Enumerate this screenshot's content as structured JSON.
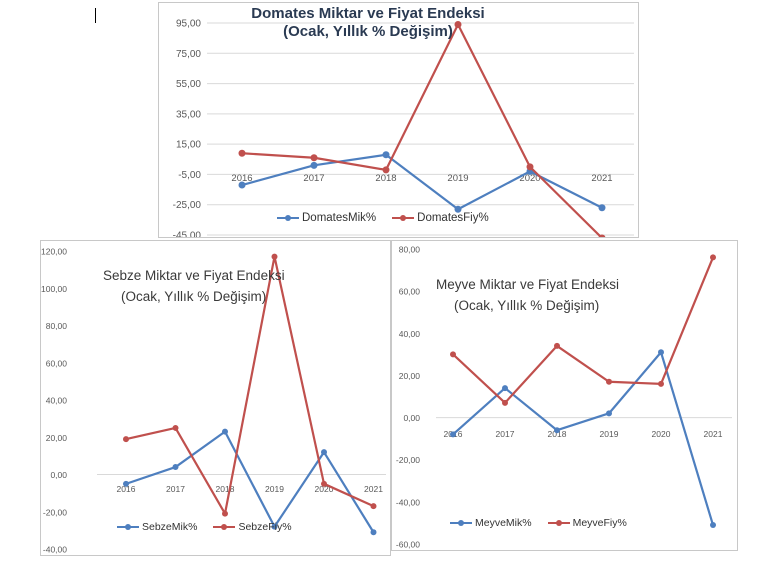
{
  "colors": {
    "series_blue": "#4e7fbf",
    "series_red": "#c0504d",
    "grid": "#d9d9d9",
    "tick_text": "#595959"
  },
  "chart_data": [
    {
      "type": "line",
      "title_line1": "Domates Miktar ve Fiyat Endeksi",
      "title_line2": "(Ocak, Yıllık % Değişim)",
      "categories": [
        "2016",
        "2017",
        "2018",
        "2019",
        "2020",
        "2021"
      ],
      "y_ticks": [
        "95,00",
        "75,00",
        "55,00",
        "35,00",
        "15,00",
        "-5,00",
        "-25,00",
        "-45,00"
      ],
      "ylim": [
        -45,
        95
      ],
      "grid": true,
      "legend": "bottom",
      "series": [
        {
          "name": "DomatesMik%",
          "color": "#4e7fbf",
          "values": [
            -12,
            1,
            8,
            -28,
            -3,
            -27
          ]
        },
        {
          "name": "DomatesFiy%",
          "color": "#c0504d",
          "values": [
            9,
            6,
            -2,
            94,
            0,
            -47
          ]
        }
      ]
    },
    {
      "type": "line",
      "title_line1": "Sebze Miktar ve Fiyat Endeksi",
      "title_line2": "(Ocak, Yıllık % Değişim)",
      "categories": [
        "2016",
        "2017",
        "2018",
        "2019",
        "2020",
        "2021"
      ],
      "y_ticks": [
        "120,00",
        "100,00",
        "80,00",
        "60,00",
        "40,00",
        "20,00",
        "0,00",
        "-20,00",
        "-40,00"
      ],
      "ylim": [
        -40,
        120
      ],
      "grid": false,
      "legend": "bottom",
      "series": [
        {
          "name": "SebzeMik%",
          "color": "#4e7fbf",
          "values": [
            -5,
            4,
            23,
            -28,
            12,
            -31
          ]
        },
        {
          "name": "SebzeFiy%",
          "color": "#c0504d",
          "values": [
            19,
            25,
            -21,
            117,
            -5,
            -17
          ]
        }
      ]
    },
    {
      "type": "line",
      "title_line1": "Meyve Miktar ve Fiyat Endeksi",
      "title_line2": "(Ocak, Yıllık % Değişim)",
      "categories": [
        "2016",
        "2017",
        "2018",
        "2019",
        "2020",
        "2021"
      ],
      "y_ticks": [
        "80,00",
        "60,00",
        "40,00",
        "20,00",
        "0,00",
        "-20,00",
        "-40,00",
        "-60,00"
      ],
      "ylim": [
        -60,
        80
      ],
      "grid": false,
      "legend": "bottom",
      "series": [
        {
          "name": "MeyveMik%",
          "color": "#4e7fbf",
          "values": [
            -8,
            14,
            -6,
            2,
            31,
            -51
          ]
        },
        {
          "name": "MeyveFiy%",
          "color": "#c0504d",
          "values": [
            30,
            7,
            34,
            17,
            16,
            76
          ]
        }
      ]
    }
  ]
}
